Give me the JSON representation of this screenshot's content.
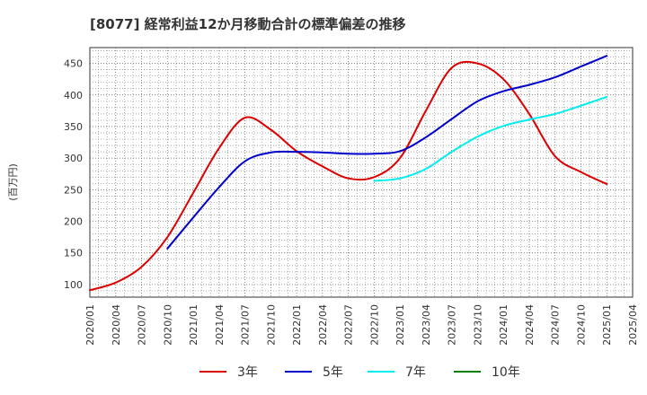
{
  "chart_data": {
    "type": "line",
    "title": "[8077]  経常利益12か月移動合計の標準偏差の推移",
    "ylabel": "(百万円)",
    "xlabel": "",
    "ylim": [
      80,
      475
    ],
    "yticks": [
      100,
      150,
      200,
      250,
      300,
      350,
      400,
      450
    ],
    "x_tick_labels": [
      "2020/01",
      "2020/04",
      "2020/07",
      "2020/10",
      "2021/01",
      "2021/04",
      "2021/07",
      "2021/10",
      "2022/01",
      "2022/04",
      "2022/07",
      "2022/10",
      "2023/01",
      "2023/04",
      "2023/07",
      "2023/10",
      "2024/01",
      "2024/04",
      "2024/07",
      "2024/10",
      "2025/01",
      "2025/04"
    ],
    "grid": true,
    "legend_position": "bottom",
    "series": [
      {
        "name": "3年",
        "color": "#dd0000",
        "points": [
          [
            "2020/01",
            91
          ],
          [
            "2020/04",
            103
          ],
          [
            "2020/07",
            128
          ],
          [
            "2020/10",
            175
          ],
          [
            "2021/01",
            245
          ],
          [
            "2021/04",
            316
          ],
          [
            "2021/07",
            364
          ],
          [
            "2021/10",
            345
          ],
          [
            "2022/01",
            311
          ],
          [
            "2022/04",
            287
          ],
          [
            "2022/07",
            268
          ],
          [
            "2022/10",
            270
          ],
          [
            "2023/01",
            300
          ],
          [
            "2023/04",
            375
          ],
          [
            "2023/07",
            443
          ],
          [
            "2023/10",
            450
          ],
          [
            "2024/01",
            425
          ],
          [
            "2024/04",
            370
          ],
          [
            "2024/07",
            303
          ],
          [
            "2024/10",
            278
          ],
          [
            "2025/01",
            259
          ]
        ]
      },
      {
        "name": "5年",
        "color": "#0000cc",
        "points": [
          [
            "2020/10",
            157
          ],
          [
            "2021/01",
            206
          ],
          [
            "2021/04",
            254
          ],
          [
            "2021/07",
            295
          ],
          [
            "2021/10",
            309
          ],
          [
            "2022/01",
            310
          ],
          [
            "2022/04",
            309
          ],
          [
            "2022/07",
            307
          ],
          [
            "2022/10",
            307
          ],
          [
            "2023/01",
            311
          ],
          [
            "2023/04",
            333
          ],
          [
            "2023/07",
            362
          ],
          [
            "2023/10",
            390
          ],
          [
            "2024/01",
            406
          ],
          [
            "2024/04",
            416
          ],
          [
            "2024/07",
            428
          ],
          [
            "2024/10",
            445
          ],
          [
            "2025/01",
            462
          ]
        ]
      },
      {
        "name": "7年",
        "color": "#00eeee",
        "points": [
          [
            "2022/10",
            264
          ],
          [
            "2023/01",
            268
          ],
          [
            "2023/04",
            283
          ],
          [
            "2023/07",
            310
          ],
          [
            "2023/10",
            334
          ],
          [
            "2024/01",
            351
          ],
          [
            "2024/04",
            361
          ],
          [
            "2024/07",
            370
          ],
          [
            "2024/10",
            383
          ],
          [
            "2025/01",
            397
          ]
        ]
      },
      {
        "name": "10年",
        "color": "#008000",
        "points": []
      }
    ]
  }
}
